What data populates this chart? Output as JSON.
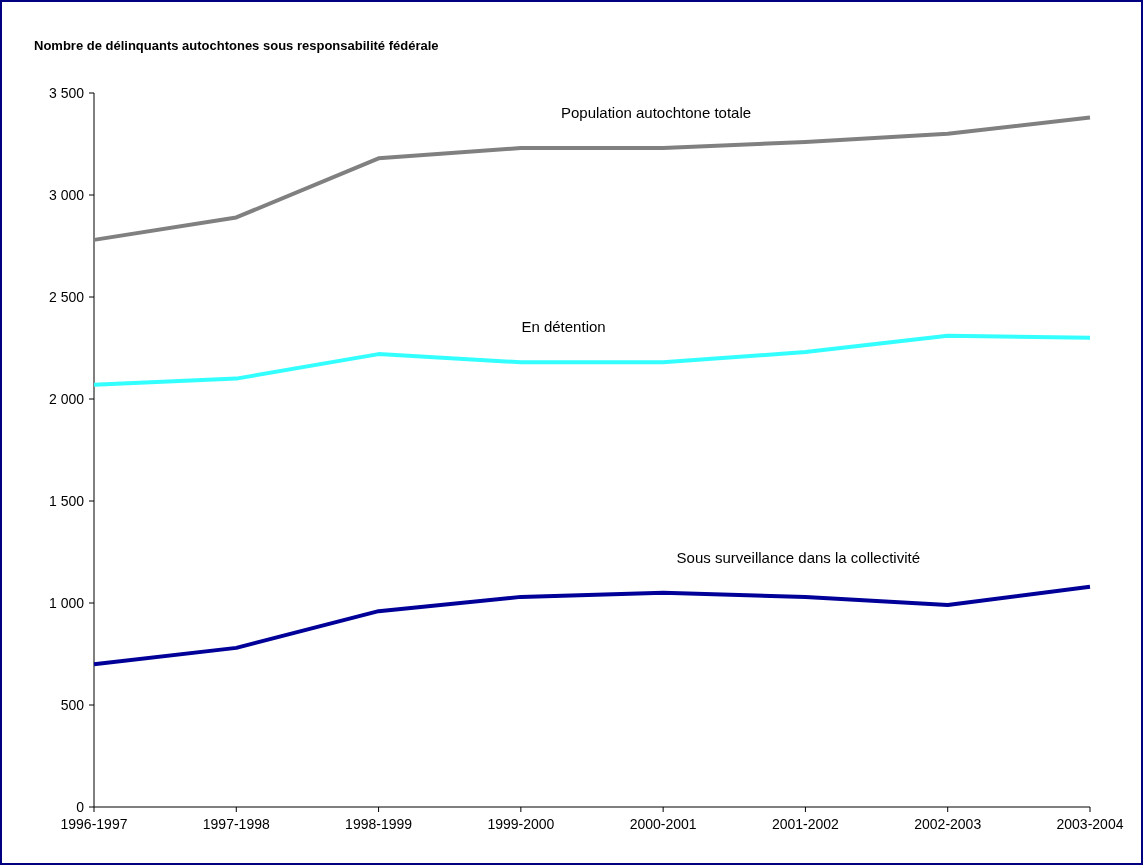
{
  "chart_data": {
    "type": "line",
    "title": "Nombre de délinquants autochtones sous responsabilité fédérale",
    "categories": [
      "1996-1997",
      "1997-1998",
      "1998-1999",
      "1999-2000",
      "2000-2001",
      "2001-2002",
      "2002-2003",
      "2003-2004"
    ],
    "series": [
      {
        "name": "Population autochtone totale",
        "color": "#808080",
        "values": [
          2780,
          2890,
          3180,
          3230,
          3230,
          3260,
          3300,
          3380
        ]
      },
      {
        "name": "En détention",
        "color": "#33ffff",
        "values": [
          2070,
          2100,
          2220,
          2180,
          2180,
          2230,
          2310,
          2300
        ]
      },
      {
        "name": "Sous surveillance dans la collectivité",
        "color": "#000099",
        "values": [
          700,
          780,
          960,
          1030,
          1050,
          1030,
          990,
          1080
        ]
      }
    ],
    "ylim": [
      0,
      3500
    ],
    "yticks": [
      0,
      500,
      {
        "value": 1000,
        "label": "1 000"
      },
      {
        "value": 1500,
        "label": "1 500"
      },
      {
        "value": 2000,
        "label": "2 000"
      },
      {
        "value": 2500,
        "label": "2 500"
      },
      {
        "value": 3000,
        "label": "3 000"
      },
      {
        "value": 3500,
        "label": "3 500"
      }
    ],
    "grid": false,
    "marker": "none",
    "line_style": "solid"
  }
}
